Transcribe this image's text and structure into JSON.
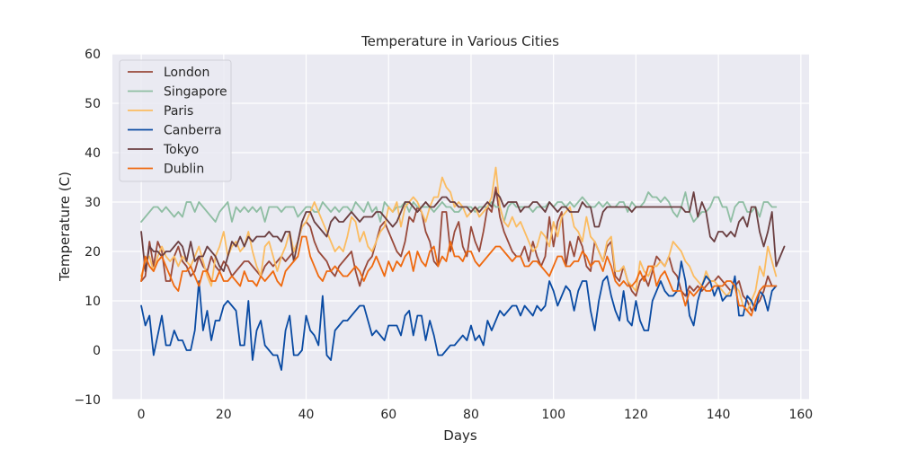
{
  "chart_data": {
    "type": "line",
    "title": "Temperature in Various Cities",
    "xlabel": "Days",
    "ylabel": "Temperature (C)",
    "xlim": [
      -7,
      162
    ],
    "ylim": [
      -10,
      60
    ],
    "x_ticks": [
      0,
      20,
      40,
      60,
      80,
      100,
      120,
      140,
      160
    ],
    "y_ticks": [
      -10,
      0,
      10,
      20,
      30,
      40,
      50,
      60
    ],
    "grid": true,
    "legend_position": "top-left",
    "style": {
      "plot_background": "#eaeaf2",
      "grid_color": "#ffffff"
    },
    "series": [
      {
        "name": "London",
        "color": "#994a3b",
        "values": [
          14,
          15,
          22,
          17,
          22,
          20,
          14,
          14,
          19,
          21,
          18,
          17,
          15,
          16,
          19,
          17,
          16,
          19,
          17,
          16,
          18,
          17,
          15,
          16,
          17,
          18,
          18,
          17,
          16,
          15,
          17,
          18,
          17,
          18,
          19,
          18,
          19,
          20,
          22,
          25,
          26,
          25,
          22,
          20,
          19,
          18,
          16,
          15,
          17,
          18,
          19,
          20,
          16,
          13,
          16,
          18,
          19,
          22,
          25,
          26,
          24,
          22,
          20,
          19,
          22,
          27,
          26,
          29,
          28,
          24,
          22,
          18,
          17,
          28,
          28,
          20,
          24,
          26,
          21,
          19,
          25,
          22,
          20,
          24,
          29,
          28,
          33,
          27,
          24,
          22,
          20,
          19,
          19,
          21,
          18,
          22,
          19,
          17,
          19,
          27,
          21,
          26,
          28,
          17,
          22,
          19,
          23,
          21,
          17,
          16,
          22,
          20,
          18,
          21,
          22,
          15,
          14,
          17,
          14,
          12,
          11,
          14,
          15,
          13,
          16,
          19,
          18,
          17,
          19,
          16,
          15,
          12,
          11,
          13,
          12,
          13,
          12,
          13,
          14,
          14,
          15,
          14,
          13,
          12,
          13,
          14,
          11,
          10,
          8,
          9,
          10,
          12,
          15,
          13,
          13
        ]
      },
      {
        "name": "Singapore",
        "color": "#8fbea3",
        "values": [
          26,
          27,
          28,
          29,
          29,
          28,
          29,
          28,
          27,
          28,
          27,
          30,
          30,
          28,
          30,
          29,
          28,
          27,
          26,
          28,
          29,
          30,
          26,
          29,
          28,
          29,
          28,
          29,
          28,
          29,
          26,
          29,
          29,
          29,
          28,
          29,
          29,
          29,
          27,
          28,
          29,
          29,
          28,
          28,
          30,
          29,
          28,
          29,
          28,
          29,
          29,
          28,
          30,
          29,
          28,
          30,
          28,
          29,
          26,
          30,
          29,
          28,
          29,
          29,
          30,
          28,
          30,
          29,
          29,
          29,
          29,
          28,
          29,
          30,
          29,
          29,
          28,
          28,
          29,
          29,
          29,
          28,
          29,
          29,
          29,
          30,
          29,
          29,
          26,
          29,
          30,
          29,
          29,
          29,
          29,
          28,
          29,
          29,
          29,
          30,
          29,
          30,
          30,
          29,
          30,
          29,
          30,
          31,
          30,
          29,
          29,
          30,
          29,
          30,
          29,
          29,
          30,
          30,
          28,
          30,
          29,
          29,
          30,
          32,
          31,
          31,
          30,
          31,
          30,
          28,
          27,
          29,
          32,
          28,
          26,
          27,
          28,
          28,
          29,
          31,
          31,
          29,
          29,
          26,
          29,
          30,
          30,
          28,
          28,
          29,
          27,
          30,
          30,
          29,
          29
        ]
      },
      {
        "name": "Paris",
        "color": "#fbbc61",
        "values": [
          15,
          18,
          19,
          16,
          19,
          21,
          19,
          18,
          19,
          17,
          19,
          18,
          17,
          19,
          21,
          18,
          15,
          13,
          19,
          21,
          24,
          19,
          21,
          22,
          20,
          21,
          24,
          20,
          17,
          15,
          21,
          22,
          19,
          16,
          19,
          21,
          24,
          20,
          22,
          25,
          26,
          28,
          30,
          28,
          26,
          24,
          22,
          20,
          21,
          20,
          23,
          27,
          26,
          22,
          24,
          21,
          20,
          22,
          24,
          25,
          29,
          28,
          30,
          25,
          29,
          30,
          31,
          30,
          28,
          26,
          29,
          31,
          31,
          35,
          33,
          32,
          29,
          30,
          29,
          27,
          28,
          29,
          27,
          28,
          29,
          31,
          37,
          29,
          26,
          25,
          27,
          25,
          26,
          24,
          22,
          20,
          21,
          24,
          23,
          21,
          26,
          23,
          27,
          28,
          29,
          25,
          24,
          22,
          27,
          23,
          22,
          20,
          18,
          22,
          23,
          16,
          16,
          17,
          14,
          13,
          12,
          18,
          16,
          15,
          17,
          17,
          18,
          17,
          19,
          22,
          21,
          20,
          18,
          17,
          15,
          14,
          13,
          16,
          14,
          14,
          13,
          12,
          11,
          12,
          13,
          12,
          9,
          8,
          10,
          12,
          17,
          15,
          21,
          18,
          15
        ]
      },
      {
        "name": "Canberra",
        "color": "#0a4ba3",
        "values": [
          9,
          5,
          7,
          -1,
          3,
          7,
          1,
          1,
          4,
          2,
          2,
          0,
          0,
          4,
          14,
          4,
          8,
          2,
          6,
          6,
          9,
          10,
          9,
          8,
          1,
          1,
          10,
          -2,
          4,
          6,
          1,
          0,
          -1,
          -1,
          -4,
          4,
          7,
          -1,
          -1,
          0,
          7,
          4,
          3,
          1,
          11,
          -1,
          -2,
          4,
          5,
          6,
          6,
          7,
          8,
          9,
          9,
          6,
          3,
          4,
          3,
          2,
          5,
          5,
          5,
          3,
          7,
          8,
          3,
          7,
          7,
          2,
          6,
          3,
          -1,
          -1,
          0,
          1,
          1,
          2,
          3,
          2,
          5,
          2,
          3,
          1,
          6,
          4,
          6,
          8,
          7,
          8,
          9,
          9,
          7,
          9,
          8,
          7,
          9,
          8,
          9,
          14,
          12,
          9,
          11,
          13,
          12,
          8,
          12,
          14,
          14,
          8,
          4,
          10,
          14,
          15,
          11,
          8,
          6,
          12,
          6,
          5,
          10,
          6,
          4,
          4,
          10,
          12,
          14,
          12,
          11,
          11,
          12,
          18,
          14,
          7,
          5,
          10,
          13,
          15,
          14,
          11,
          13,
          10,
          11,
          11,
          15,
          7,
          7,
          11,
          10,
          8,
          12,
          11,
          8,
          12,
          13
        ]
      },
      {
        "name": "Tokyo",
        "color": "#6b3f41",
        "values": [
          24,
          16,
          21,
          20,
          20,
          19,
          20,
          20,
          21,
          22,
          21,
          18,
          22,
          18,
          19,
          19,
          21,
          20,
          19,
          17,
          16,
          19,
          22,
          21,
          23,
          21,
          23,
          22,
          23,
          23,
          23,
          24,
          23,
          23,
          22,
          24,
          24,
          18,
          22,
          26,
          28,
          28,
          26,
          25,
          24,
          23,
          26,
          27,
          26,
          26,
          27,
          28,
          27,
          26,
          27,
          27,
          27,
          28,
          28,
          27,
          26,
          25,
          26,
          28,
          30,
          30,
          29,
          28,
          29,
          30,
          29,
          29,
          30,
          31,
          31,
          30,
          30,
          29,
          29,
          29,
          28,
          29,
          28,
          29,
          30,
          29,
          32,
          31,
          29,
          30,
          30,
          30,
          28,
          29,
          29,
          30,
          30,
          29,
          28,
          30,
          29,
          28,
          29,
          29,
          28,
          28,
          28,
          30,
          29,
          29,
          25,
          25,
          28,
          29,
          29,
          29,
          29,
          29,
          29,
          28,
          29,
          29,
          29,
          29,
          29,
          29,
          29,
          29,
          29,
          29,
          29,
          29,
          28,
          28,
          32,
          27,
          30,
          28,
          23,
          22,
          24,
          24,
          23,
          24,
          23,
          26,
          27,
          25,
          29,
          29,
          24,
          21,
          24,
          28,
          17,
          19,
          21
        ]
      },
      {
        "name": "Dublin",
        "color": "#ef6a10",
        "values": [
          14,
          19,
          17,
          16,
          18,
          19,
          17,
          15,
          13,
          12,
          16,
          16,
          17,
          15,
          13,
          16,
          16,
          14,
          14,
          16,
          14,
          14,
          15,
          14,
          13,
          16,
          14,
          14,
          13,
          15,
          14,
          15,
          16,
          14,
          13,
          16,
          17,
          18,
          19,
          23,
          23,
          19,
          17,
          15,
          14,
          16,
          16,
          17,
          16,
          15,
          15,
          16,
          17,
          16,
          14,
          16,
          17,
          19,
          17,
          15,
          18,
          16,
          18,
          17,
          19,
          20,
          16,
          20,
          18,
          17,
          20,
          21,
          17,
          19,
          18,
          22,
          19,
          19,
          18,
          20,
          20,
          18,
          17,
          18,
          19,
          20,
          21,
          21,
          20,
          19,
          18,
          19,
          19,
          17,
          17,
          18,
          18,
          17,
          16,
          15,
          17,
          19,
          19,
          17,
          17,
          18,
          18,
          20,
          19,
          17,
          18,
          18,
          16,
          19,
          17,
          14,
          13,
          14,
          13,
          13,
          14,
          16,
          14,
          17,
          17,
          13,
          15,
          16,
          14,
          12,
          12,
          12,
          9,
          12,
          11,
          12,
          13,
          12,
          12,
          13,
          13,
          13,
          14,
          14,
          13,
          9,
          9,
          8,
          7,
          10,
          12,
          13,
          13,
          13,
          13
        ]
      }
    ]
  }
}
